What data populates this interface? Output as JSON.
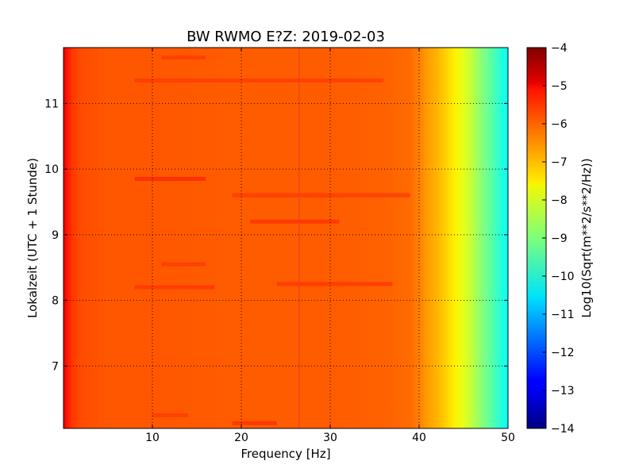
{
  "chart_data": {
    "type": "heatmap",
    "title": "BW RWMO E?Z: 2019-02-03",
    "xlabel": "Frequency [Hz]",
    "ylabel": "Lokalzeit (UTC + 1 Stunde)",
    "xlim": [
      0,
      50
    ],
    "ylim": [
      11.85,
      6.05
    ],
    "x_ticks": [
      10,
      20,
      30,
      40,
      50
    ],
    "y_ticks": [
      7,
      8,
      9,
      10,
      11
    ],
    "grid": true,
    "colormap": "jet",
    "colorbar": {
      "label": "Log10(Sqrt(m**2/s**2/Hz))",
      "range": [
        -14,
        -4
      ],
      "ticks": [
        -4,
        -5,
        -6,
        -7,
        -8,
        -9,
        -10,
        -11,
        -12,
        -13,
        -14
      ]
    },
    "spectrum_profile": {
      "frequency_hz": [
        0,
        0.5,
        1,
        2,
        5,
        10,
        20,
        30,
        36,
        39,
        40,
        41,
        42,
        43,
        44,
        45,
        46,
        47,
        48,
        49,
        50
      ],
      "log10_amplitude": [
        -5.1,
        -5.5,
        -5.8,
        -6.0,
        -6.1,
        -6.1,
        -6.15,
        -6.15,
        -6.2,
        -6.3,
        -6.5,
        -6.8,
        -7.0,
        -7.3,
        -7.6,
        -8.0,
        -8.4,
        -8.9,
        -9.3,
        -9.8,
        -10.2
      ]
    },
    "bands": [
      {
        "time": 6.13,
        "f_start": 19,
        "f_end": 24,
        "log10_amplitude": -5.7
      },
      {
        "time": 6.25,
        "f_start": 10,
        "f_end": 14,
        "log10_amplitude": -5.8
      },
      {
        "time": 8.2,
        "f_start": 8,
        "f_end": 17,
        "log10_amplitude": -5.75
      },
      {
        "time": 8.25,
        "f_start": 24,
        "f_end": 37,
        "log10_amplitude": -5.75
      },
      {
        "time": 8.55,
        "f_start": 11,
        "f_end": 16,
        "log10_amplitude": -5.8
      },
      {
        "time": 9.2,
        "f_start": 21,
        "f_end": 31,
        "log10_amplitude": -5.7
      },
      {
        "time": 9.6,
        "f_start": 19,
        "f_end": 39,
        "log10_amplitude": -5.8
      },
      {
        "time": 9.85,
        "f_start": 8,
        "f_end": 16,
        "log10_amplitude": -5.6
      },
      {
        "time": 11.35,
        "f_start": 8,
        "f_end": 36,
        "log10_amplitude": -5.8
      },
      {
        "time": 11.7,
        "f_start": 11,
        "f_end": 16,
        "log10_amplitude": -5.8
      }
    ],
    "line_feature_hz": 26.5
  }
}
